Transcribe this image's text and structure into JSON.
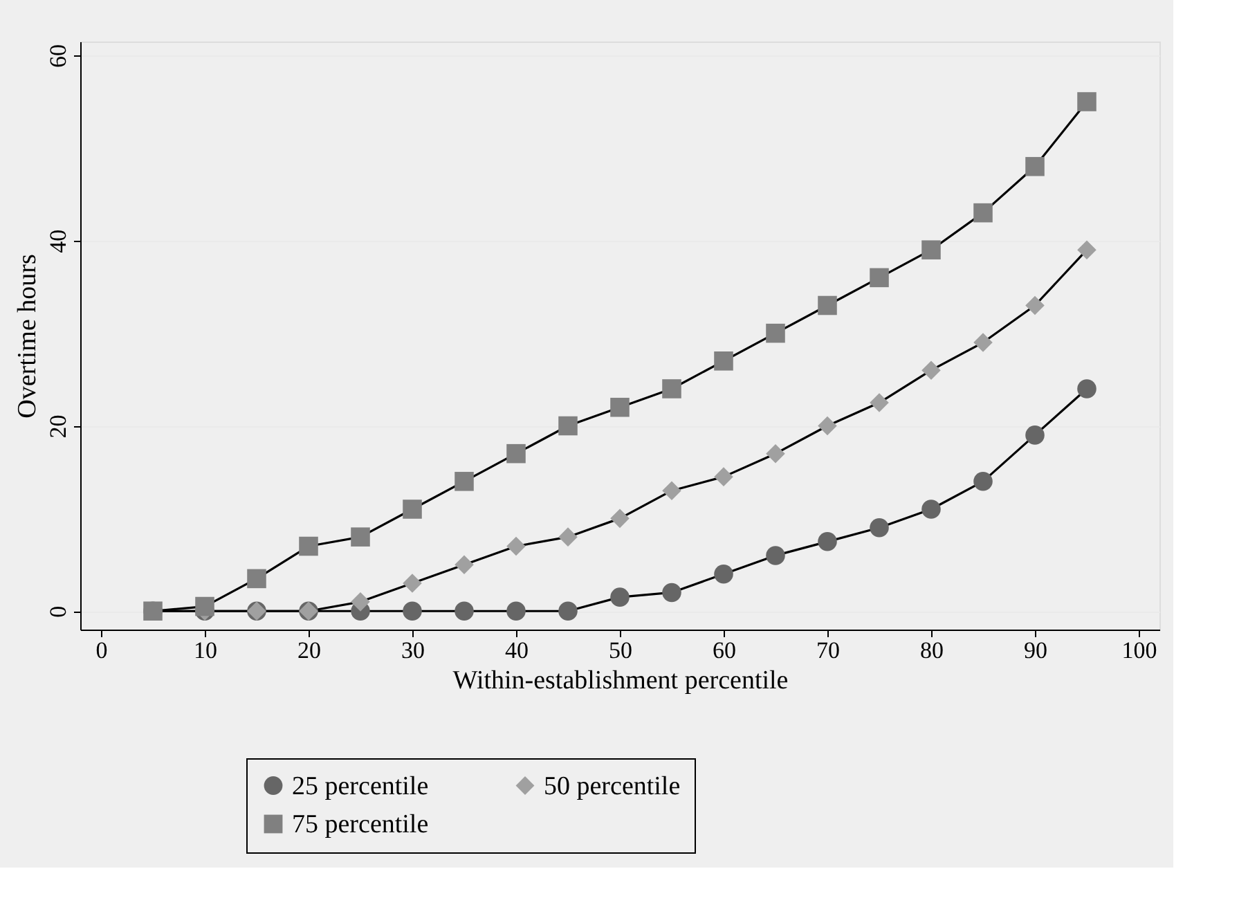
{
  "chart_data": {
    "type": "line",
    "xlabel": "Within-establishment percentile",
    "ylabel": "Overtime hours",
    "x": [
      5,
      10,
      15,
      20,
      25,
      30,
      35,
      40,
      45,
      50,
      55,
      60,
      65,
      70,
      75,
      80,
      85,
      90,
      95
    ],
    "series": [
      {
        "name": "25 percentile",
        "color": "#666666",
        "marker": "circle",
        "values": [
          0,
          0,
          0,
          0,
          0,
          0,
          0,
          0,
          0,
          1.5,
          2,
          4,
          6,
          7.5,
          9,
          11,
          14,
          19,
          24
        ]
      },
      {
        "name": "50 percentile",
        "color": "#a0a0a0",
        "marker": "diamond",
        "values": [
          0,
          0,
          0,
          0,
          1,
          3,
          5,
          7,
          8,
          10,
          13,
          14.5,
          17,
          20,
          22.5,
          26,
          29,
          33,
          39
        ]
      },
      {
        "name": "75 percentile",
        "color": "#808080",
        "marker": "square",
        "values": [
          0,
          0.5,
          3.5,
          7,
          8,
          11,
          14,
          17,
          20,
          22,
          24,
          27,
          30,
          33,
          36,
          39,
          43,
          48,
          55
        ]
      }
    ],
    "xlim": [
      -2,
      102
    ],
    "xticks": [
      0,
      10,
      20,
      30,
      40,
      50,
      60,
      70,
      80,
      90,
      100
    ],
    "ylim": [
      -2,
      61.5
    ],
    "yticks": [
      0,
      20,
      40,
      60
    ],
    "grid": "y",
    "legend": "bottom",
    "line_style": "solid"
  }
}
